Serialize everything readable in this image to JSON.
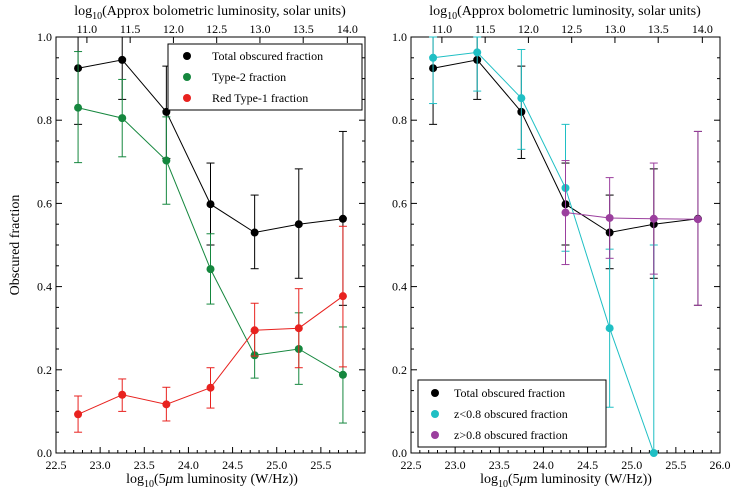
{
  "chart_data": [
    {
      "type": "line",
      "xlabel": "log10(5μm luminosity (W/Hz))",
      "xlabel_parts": {
        "pre": "log",
        "sub": "10",
        "post": "(5",
        "mu": "μ",
        "post2": "m luminosity (W/Hz))"
      },
      "top_xlabel": "log10(Approx bolometric luminosity, solar units)",
      "top_xlabel_parts": {
        "pre": "log",
        "sub": "10",
        "post": "(Approx bolometric luminosity, solar units)"
      },
      "ylabel": "Obscured fraction",
      "xlim": [
        22.5,
        26.0
      ],
      "ylim": [
        0.0,
        1.0
      ],
      "xticks": [
        "22.5",
        "23.0",
        "23.5",
        "24.0",
        "24.5",
        "25.0",
        "25.5"
      ],
      "yticks": [
        "0.0",
        "0.2",
        "0.4",
        "0.6",
        "0.8",
        "1.0"
      ],
      "top_ticks": [
        {
          "x": 22.85,
          "label": "11.0"
        },
        {
          "x": 23.34,
          "label": "11.5"
        },
        {
          "x": 23.83,
          "label": "12.0"
        },
        {
          "x": 24.32,
          "label": "12.5"
        },
        {
          "x": 24.81,
          "label": "13.0"
        },
        {
          "x": 25.3,
          "label": "13.5"
        },
        {
          "x": 25.8,
          "label": "14.0"
        }
      ],
      "legend_position": "top-right",
      "series": [
        {
          "name": "Total obscured fraction",
          "color": "#000000",
          "points": [
            {
              "x": 22.75,
              "y": 0.925,
              "lo": 0.79,
              "hi": 1.0
            },
            {
              "x": 23.25,
              "y": 0.945,
              "lo": 0.85,
              "hi": 1.0
            },
            {
              "x": 23.75,
              "y": 0.82,
              "lo": 0.708,
              "hi": 0.93
            },
            {
              "x": 24.25,
              "y": 0.598,
              "lo": 0.5,
              "hi": 0.697
            },
            {
              "x": 24.75,
              "y": 0.53,
              "lo": 0.443,
              "hi": 0.62
            },
            {
              "x": 25.25,
              "y": 0.55,
              "lo": 0.42,
              "hi": 0.683
            },
            {
              "x": 25.75,
              "y": 0.563,
              "lo": 0.355,
              "hi": 0.773
            }
          ]
        },
        {
          "name": "Type-2 fraction",
          "color": "#15873e",
          "points": [
            {
              "x": 22.75,
              "y": 0.83,
              "lo": 0.698,
              "hi": 0.965
            },
            {
              "x": 23.25,
              "y": 0.805,
              "lo": 0.712,
              "hi": 0.898
            },
            {
              "x": 23.75,
              "y": 0.703,
              "lo": 0.598,
              "hi": 0.808
            },
            {
              "x": 24.25,
              "y": 0.442,
              "lo": 0.358,
              "hi": 0.527
            },
            {
              "x": 24.75,
              "y": 0.235,
              "lo": 0.18,
              "hi": 0.292
            },
            {
              "x": 25.25,
              "y": 0.25,
              "lo": 0.165,
              "hi": 0.337
            },
            {
              "x": 25.75,
              "y": 0.188,
              "lo": 0.072,
              "hi": 0.303
            }
          ]
        },
        {
          "name": "Red Type-1 fraction",
          "color": "#e8221f",
          "points": [
            {
              "x": 22.75,
              "y": 0.093,
              "lo": 0.05,
              "hi": 0.137
            },
            {
              "x": 23.25,
              "y": 0.14,
              "lo": 0.1,
              "hi": 0.178
            },
            {
              "x": 23.75,
              "y": 0.117,
              "lo": 0.077,
              "hi": 0.158
            },
            {
              "x": 24.25,
              "y": 0.157,
              "lo": 0.108,
              "hi": 0.205
            },
            {
              "x": 24.75,
              "y": 0.295,
              "lo": 0.233,
              "hi": 0.36
            },
            {
              "x": 25.25,
              "y": 0.3,
              "lo": 0.205,
              "hi": 0.395
            },
            {
              "x": 25.75,
              "y": 0.377,
              "lo": 0.207,
              "hi": 0.545
            }
          ]
        }
      ]
    },
    {
      "type": "line",
      "xlabel": "log10(5μm luminosity (W/Hz))",
      "xlabel_parts": {
        "pre": "log",
        "sub": "10",
        "post": "(5",
        "mu": "μ",
        "post2": "m luminosity (W/Hz))"
      },
      "top_xlabel": "log10(Approx bolometric luminosity, solar units)",
      "top_xlabel_parts": {
        "pre": "log",
        "sub": "10",
        "post": "(Approx bolometric luminosity, solar units)"
      },
      "ylabel": "",
      "xlim": [
        22.5,
        26.0
      ],
      "ylim": [
        0.0,
        1.0
      ],
      "xticks": [
        "22.5",
        "23.0",
        "23.5",
        "24.0",
        "24.5",
        "25.0",
        "25.5",
        "26.0"
      ],
      "yticks": [
        "0.0",
        "0.2",
        "0.4",
        "0.6",
        "0.8",
        "1.0"
      ],
      "top_ticks": [
        {
          "x": 22.85,
          "label": "11.0"
        },
        {
          "x": 23.34,
          "label": "11.5"
        },
        {
          "x": 23.83,
          "label": "12.0"
        },
        {
          "x": 24.32,
          "label": "12.5"
        },
        {
          "x": 24.81,
          "label": "13.0"
        },
        {
          "x": 25.3,
          "label": "13.5"
        },
        {
          "x": 25.8,
          "label": "14.0"
        }
      ],
      "legend_position": "bottom-left",
      "series": [
        {
          "name": "Total obscured fraction",
          "color": "#000000",
          "points": [
            {
              "x": 22.75,
              "y": 0.925,
              "lo": 0.79,
              "hi": 1.0
            },
            {
              "x": 23.25,
              "y": 0.945,
              "lo": 0.85,
              "hi": 1.0
            },
            {
              "x": 23.75,
              "y": 0.82,
              "lo": 0.708,
              "hi": 0.93
            },
            {
              "x": 24.25,
              "y": 0.598,
              "lo": 0.5,
              "hi": 0.697
            },
            {
              "x": 24.75,
              "y": 0.53,
              "lo": 0.443,
              "hi": 0.62
            },
            {
              "x": 25.25,
              "y": 0.55,
              "lo": 0.42,
              "hi": 0.683
            },
            {
              "x": 25.75,
              "y": 0.563,
              "lo": 0.355,
              "hi": 0.773
            }
          ]
        },
        {
          "name": "z<0.8 obscured fraction",
          "color": "#1fbfc4",
          "points": [
            {
              "x": 22.75,
              "y": 0.95,
              "lo": 0.84,
              "hi": 1.0
            },
            {
              "x": 23.25,
              "y": 0.963,
              "lo": 0.87,
              "hi": 1.0
            },
            {
              "x": 23.75,
              "y": 0.853,
              "lo": 0.73,
              "hi": 0.97
            },
            {
              "x": 24.25,
              "y": 0.637,
              "lo": 0.485,
              "hi": 0.79
            },
            {
              "x": 24.75,
              "y": 0.3,
              "lo": 0.11,
              "hi": 0.49
            },
            {
              "x": 25.25,
              "y": 0.0,
              "lo": 0.0,
              "hi": 0.5
            }
          ]
        },
        {
          "name": "z>0.8 obscured fraction",
          "color": "#9b3f9e",
          "points": [
            {
              "x": 24.25,
              "y": 0.578,
              "lo": 0.453,
              "hi": 0.703
            },
            {
              "x": 24.75,
              "y": 0.565,
              "lo": 0.468,
              "hi": 0.662
            },
            {
              "x": 25.25,
              "y": 0.563,
              "lo": 0.43,
              "hi": 0.697
            },
            {
              "x": 25.75,
              "y": 0.562,
              "lo": 0.355,
              "hi": 0.773
            }
          ]
        }
      ]
    }
  ]
}
